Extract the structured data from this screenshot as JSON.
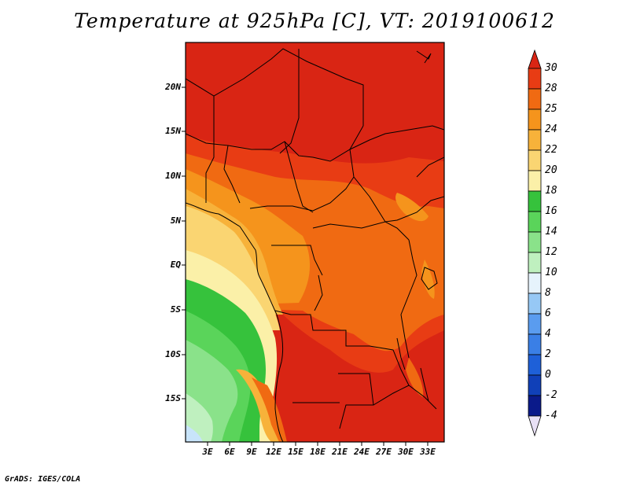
{
  "title": "Temperature at 925hPa [C], VT: 2019100612",
  "credit": "GrADS: IGES/COLA",
  "map": {
    "latitude_labels": [
      "20N",
      "15N",
      "10N",
      "5N",
      "EQ",
      "5S",
      "10S",
      "15S"
    ],
    "longitude_labels": [
      "3E",
      "6E",
      "9E",
      "12E",
      "15E",
      "18E",
      "21E",
      "24E",
      "27E",
      "30E",
      "33E"
    ],
    "variable": "Temperature at 925hPa",
    "units": "C",
    "valid_time": "2019100612"
  },
  "colorbar": {
    "labels": [
      "30",
      "28",
      "25",
      "24",
      "22",
      "20",
      "18",
      "16",
      "14",
      "12",
      "10",
      "8",
      "6",
      "4",
      "2",
      "0",
      "-2",
      "-4"
    ],
    "colors": [
      "#d92514",
      "#e83c14",
      "#f06a12",
      "#f5941c",
      "#f7b23a",
      "#fad572",
      "#fbf0a8",
      "#36c23c",
      "#5ad45a",
      "#8ae28a",
      "#bff0bf",
      "#c8e4fa",
      "#96c8f5",
      "#5a9cef",
      "#3a7fe6",
      "#1e60d8",
      "#1040b8",
      "#0a1a8a"
    ]
  }
}
